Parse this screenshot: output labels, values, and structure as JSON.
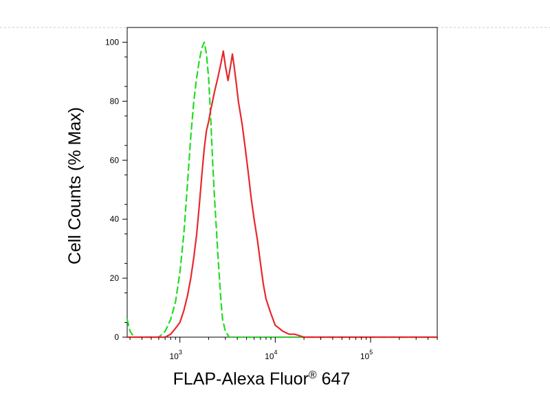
{
  "chart_data": {
    "type": "line",
    "xlabel": "FLAP-Alexa Fluor",
    "xlabel_superscript": "®",
    "xlabel_suffix": " 647",
    "ylabel": "Cell Counts (% Max)",
    "xscale": "log",
    "xlim": [
      280,
      500000
    ],
    "ylim": [
      0,
      105
    ],
    "x_ticks": [
      {
        "base": "10",
        "exp": "3",
        "value": 1000
      },
      {
        "base": "10",
        "exp": "4",
        "value": 10000
      },
      {
        "base": "10",
        "exp": "5",
        "value": 100000
      }
    ],
    "y_ticks": [
      0,
      20,
      40,
      60,
      80,
      100
    ],
    "grid": false,
    "legend": "none",
    "colors": {
      "dashed_series": "#1fdd1f",
      "solid_series": "#e8262a",
      "frame": "#000000",
      "top_guide": "#c8c8c8"
    },
    "series": [
      {
        "style": "dashed",
        "color": "#1fdd1f",
        "points": [
          [
            280,
            6
          ],
          [
            300,
            2
          ],
          [
            330,
            0
          ],
          [
            400,
            0
          ],
          [
            500,
            0
          ],
          [
            600,
            0
          ],
          [
            700,
            2
          ],
          [
            800,
            6
          ],
          [
            900,
            12
          ],
          [
            1000,
            22
          ],
          [
            1100,
            35
          ],
          [
            1200,
            52
          ],
          [
            1300,
            68
          ],
          [
            1400,
            80
          ],
          [
            1500,
            88
          ],
          [
            1600,
            94
          ],
          [
            1700,
            98
          ],
          [
            1800,
            100
          ],
          [
            1900,
            96
          ],
          [
            2000,
            88
          ],
          [
            2100,
            75
          ],
          [
            2200,
            60
          ],
          [
            2300,
            48
          ],
          [
            2400,
            38
          ],
          [
            2500,
            28
          ],
          [
            2600,
            20
          ],
          [
            2700,
            12
          ],
          [
            2800,
            6
          ],
          [
            3000,
            2
          ],
          [
            3300,
            0
          ],
          [
            5000,
            0
          ],
          [
            10000,
            0
          ],
          [
            30000,
            0
          ],
          [
            100000,
            0
          ],
          [
            500000,
            0
          ]
        ]
      },
      {
        "style": "solid",
        "color": "#e8262a",
        "points": [
          [
            280,
            0
          ],
          [
            500,
            0
          ],
          [
            700,
            0
          ],
          [
            800,
            1
          ],
          [
            900,
            3
          ],
          [
            1000,
            5
          ],
          [
            1100,
            9
          ],
          [
            1200,
            14
          ],
          [
            1300,
            20
          ],
          [
            1400,
            27
          ],
          [
            1500,
            35
          ],
          [
            1600,
            45
          ],
          [
            1700,
            55
          ],
          [
            1800,
            64
          ],
          [
            1900,
            70
          ],
          [
            2000,
            73
          ],
          [
            2100,
            77
          ],
          [
            2200,
            80
          ],
          [
            2300,
            83
          ],
          [
            2500,
            88
          ],
          [
            2700,
            93
          ],
          [
            2850,
            97
          ],
          [
            3000,
            92
          ],
          [
            3200,
            87
          ],
          [
            3400,
            92
          ],
          [
            3550,
            96
          ],
          [
            3700,
            92
          ],
          [
            3900,
            86
          ],
          [
            4100,
            80
          ],
          [
            4300,
            76
          ],
          [
            4500,
            72
          ],
          [
            4800,
            65
          ],
          [
            5200,
            56
          ],
          [
            5600,
            47
          ],
          [
            6000,
            40
          ],
          [
            6500,
            33
          ],
          [
            7000,
            25
          ],
          [
            7500,
            18
          ],
          [
            8000,
            13
          ],
          [
            9000,
            8
          ],
          [
            10000,
            4
          ],
          [
            11000,
            3
          ],
          [
            12000,
            2
          ],
          [
            14000,
            1
          ],
          [
            16000,
            1
          ],
          [
            20000,
            0
          ],
          [
            25000,
            0
          ],
          [
            50000,
            0
          ],
          [
            100000,
            0
          ],
          [
            500000,
            0
          ]
        ]
      }
    ]
  }
}
